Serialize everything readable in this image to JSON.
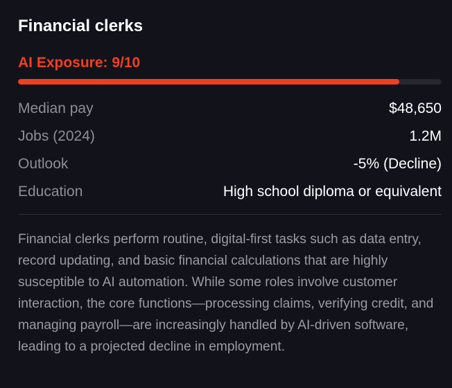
{
  "title": "Financial clerks",
  "exposure": {
    "label": "AI Exposure: 9/10",
    "score": 9,
    "max": 10,
    "fraction": 0.9,
    "color": "#f0401f"
  },
  "stats": [
    {
      "label": "Median pay",
      "value": "$48,650"
    },
    {
      "label": "Jobs (2024)",
      "value": "1.2M"
    },
    {
      "label": "Outlook",
      "value": "-5% (Decline)"
    },
    {
      "label": "Education",
      "value": "High school diploma or equivalent"
    }
  ],
  "description": "Financial clerks perform routine, digital-first tasks such as data entry, record updating, and basic financial calculations that are highly susceptible to AI automation. While some roles involve customer interaction, the core functions—processing claims, verifying credit, and managing payroll—are increasingly handled by AI-driven software, leading to a projected decline in employment."
}
